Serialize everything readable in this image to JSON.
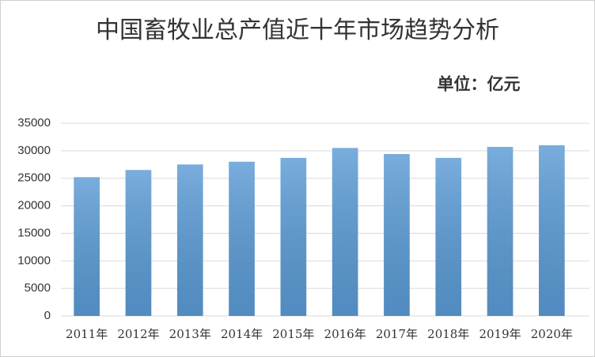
{
  "chart_data": {
    "type": "bar",
    "title": "中国畜牧业总产值近十年市场趋势分析",
    "annotation": "单位：亿元",
    "categories": [
      "2011年",
      "2012年",
      "2013年",
      "2014年",
      "2015年",
      "2016年",
      "2017年",
      "2018年",
      "2019年",
      "2020年"
    ],
    "values": [
      25200,
      26500,
      27500,
      28000,
      28700,
      30500,
      29400,
      28700,
      30700,
      31000
    ],
    "color": "#5b9bd5",
    "ylim": [
      0,
      35000
    ],
    "yticks": [
      0,
      5000,
      10000,
      15000,
      20000,
      25000,
      30000,
      35000
    ],
    "grid": true
  }
}
